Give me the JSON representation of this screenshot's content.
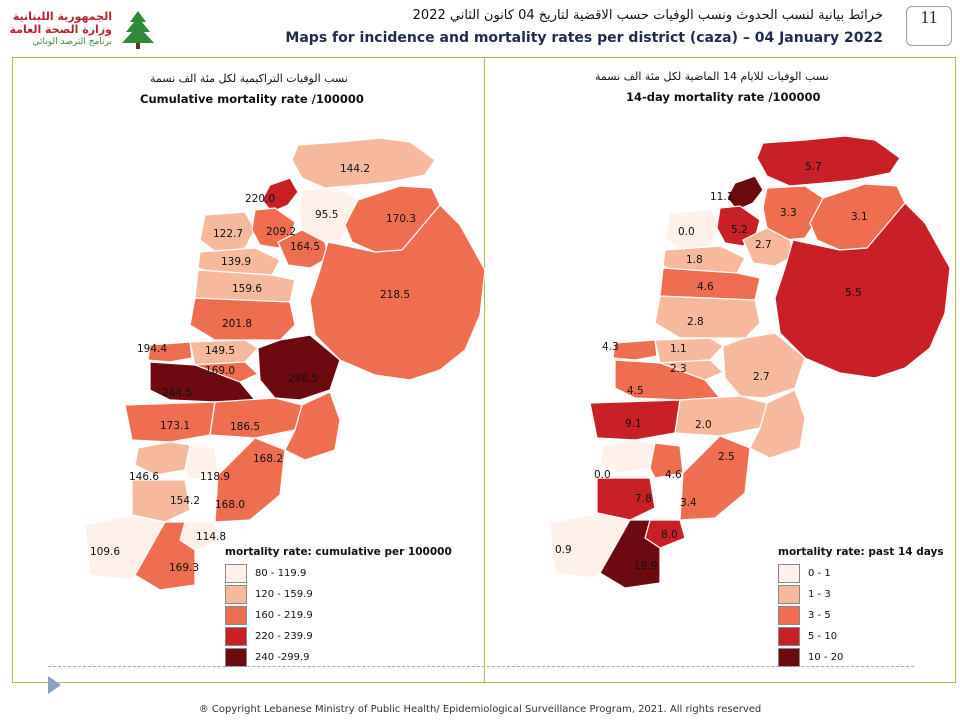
{
  "header": {
    "logo_line1": "الجمهورية اللبنانية",
    "logo_line2": "وزارة الصحة العامة",
    "logo_line3": "برنامج الترصد الوبائي",
    "title_ar": "خرائط بيانية لنسب الحدوث ونسب الوفيات حسب الاقضية لتاريخ 04 كانون الثاني 2022",
    "title_en": "Maps for incidence and mortality rates per district (caza) – 04 January 2022",
    "page_number": "11"
  },
  "left_panel": {
    "title_ar": "نسب الوفيات التراكيمية لكل مئة الف نسمة",
    "title_en": "Cumulative mortality rate /100000",
    "legend": {
      "title": "mortality rate: cumulative per 100000",
      "items": [
        {
          "label": "80 - 119.9",
          "color": "#fdf1ea"
        },
        {
          "label": "120 - 159.9",
          "color": "#f8b89b"
        },
        {
          "label": "160 - 219.9",
          "color": "#ef6e4f"
        },
        {
          "label": "220 - 239.9",
          "color": "#c92026"
        },
        {
          "label": "240 -299.9",
          "color": "#6c0a10"
        }
      ]
    },
    "districts": [
      {
        "label": "144.2",
        "value": 144.2
      },
      {
        "label": "220.0",
        "value": 220.0
      },
      {
        "label": "95.5",
        "value": 95.5
      },
      {
        "label": "170.3",
        "value": 170.3
      },
      {
        "label": "122.7",
        "value": 122.7
      },
      {
        "label": "209.2",
        "value": 209.2
      },
      {
        "label": "164.5",
        "value": 164.5
      },
      {
        "label": "139.9",
        "value": 139.9
      },
      {
        "label": "218.5",
        "value": 218.5
      },
      {
        "label": "159.6",
        "value": 159.6
      },
      {
        "label": "201.8",
        "value": 201.8
      },
      {
        "label": "194.4",
        "value": 194.4
      },
      {
        "label": "149.5",
        "value": 149.5
      },
      {
        "label": "169.0",
        "value": 169.0
      },
      {
        "label": "286.5",
        "value": 286.5
      },
      {
        "label": "244.5",
        "value": 244.5
      },
      {
        "label": "173.1",
        "value": 173.1
      },
      {
        "label": "186.5",
        "value": 186.5
      },
      {
        "label": "168.2",
        "value": 168.2
      },
      {
        "label": "146.6",
        "value": 146.6
      },
      {
        "label": "118.9",
        "value": 118.9
      },
      {
        "label": "154.2",
        "value": 154.2
      },
      {
        "label": "168.0",
        "value": 168.0
      },
      {
        "label": "114.8",
        "value": 114.8
      },
      {
        "label": "109.6",
        "value": 109.6
      },
      {
        "label": "169.3",
        "value": 169.3
      }
    ]
  },
  "right_panel": {
    "title_ar": "نسب الوفيات للايام 14 الماضية لكل مئة الف نسمة",
    "title_en": "14-day mortality rate /100000",
    "legend": {
      "title": "mortality rate: past 14 days",
      "items": [
        {
          "label": "0 - 1",
          "color": "#fdf1ea"
        },
        {
          "label": "1 - 3",
          "color": "#f8b89b"
        },
        {
          "label": "3 - 5",
          "color": "#ef6e4f"
        },
        {
          "label": "5 - 10",
          "color": "#c92026"
        },
        {
          "label": "10 - 20",
          "color": "#6c0a10"
        }
      ]
    },
    "districts": [
      {
        "label": "5.7",
        "value": 5.7
      },
      {
        "label": "11.1",
        "value": 11.1
      },
      {
        "label": "3.3",
        "value": 3.3
      },
      {
        "label": "3.1",
        "value": 3.1
      },
      {
        "label": "0.0",
        "value": 0.0
      },
      {
        "label": "5.2",
        "value": 5.2
      },
      {
        "label": "2.7",
        "value": 2.7
      },
      {
        "label": "1.8",
        "value": 1.8
      },
      {
        "label": "5.5",
        "value": 5.5
      },
      {
        "label": "4.6",
        "value": 4.6
      },
      {
        "label": "2.8",
        "value": 2.8
      },
      {
        "label": "4.3",
        "value": 4.3
      },
      {
        "label": "1.1",
        "value": 1.1
      },
      {
        "label": "2.3",
        "value": 2.3
      },
      {
        "label": "2.7",
        "value": 2.7
      },
      {
        "label": "4.5",
        "value": 4.5
      },
      {
        "label": "9.1",
        "value": 9.1
      },
      {
        "label": "2.0",
        "value": 2.0
      },
      {
        "label": "2.5",
        "value": 2.5
      },
      {
        "label": "0.0",
        "value": 0.0
      },
      {
        "label": "4.6",
        "value": 4.6
      },
      {
        "label": "7.8",
        "value": 7.8
      },
      {
        "label": "3.4",
        "value": 3.4
      },
      {
        "label": "8.0",
        "value": 8.0
      },
      {
        "label": "0.9",
        "value": 0.9
      },
      {
        "label": "19.9",
        "value": 19.9
      }
    ]
  },
  "footer": "® Copyright Lebanese Ministry of Public Health/ Epidemiological Surveillance Program, 2021. All rights reserved"
}
